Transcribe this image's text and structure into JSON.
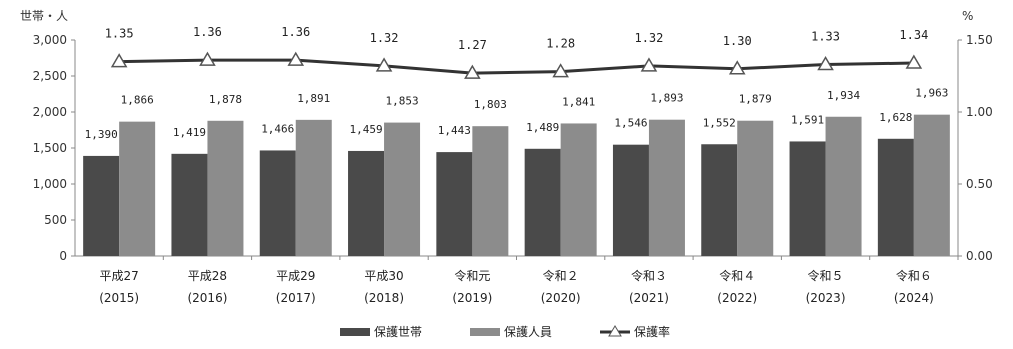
{
  "chart_data": {
    "type": "bar",
    "left_axis_unit": "世帯・人",
    "right_axis_unit": "%",
    "categories": [
      {
        "era": "平成27",
        "year": "(2015)"
      },
      {
        "era": "平成28",
        "year": "(2016)"
      },
      {
        "era": "平成29",
        "year": "(2017)"
      },
      {
        "era": "平成30",
        "year": "(2018)"
      },
      {
        "era": "令和元",
        "year": "(2019)"
      },
      {
        "era": "令和２",
        "year": "(2020)"
      },
      {
        "era": "令和３",
        "year": "(2021)"
      },
      {
        "era": "令和４",
        "year": "(2022)"
      },
      {
        "era": "令和５",
        "year": "(2023)"
      },
      {
        "era": "令和６",
        "year": "(2024)"
      }
    ],
    "left_axis": {
      "min": 0,
      "max": 3000,
      "ticks": [
        "0",
        "500",
        "1,000",
        "1,500",
        "2,000",
        "2,500",
        "3,000"
      ]
    },
    "right_axis": {
      "min": 0,
      "max": 1.5,
      "ticks": [
        "0.00",
        "0.50",
        "1.00",
        "1.50"
      ]
    },
    "series": [
      {
        "name": "保護世帯",
        "axis": "left",
        "kind": "bar",
        "color": "#4a4a4a",
        "values": [
          1390,
          1419,
          1466,
          1459,
          1443,
          1489,
          1546,
          1552,
          1591,
          1628
        ],
        "labels": [
          "1,390",
          "1,419",
          "1,466",
          "1,459",
          "1,443",
          "1,489",
          "1,546",
          "1,552",
          "1,591",
          "1,628"
        ]
      },
      {
        "name": "保護人員",
        "axis": "left",
        "kind": "bar",
        "color": "#8c8c8c",
        "values": [
          1866,
          1878,
          1891,
          1853,
          1803,
          1841,
          1893,
          1879,
          1934,
          1963
        ],
        "labels": [
          "1,866",
          "1,878",
          "1,891",
          "1,853",
          "1,803",
          "1,841",
          "1,893",
          "1,879",
          "1,934",
          "1,963"
        ]
      },
      {
        "name": "保護率",
        "axis": "right",
        "kind": "line",
        "color": "#333333",
        "values": [
          1.35,
          1.36,
          1.36,
          1.32,
          1.27,
          1.28,
          1.32,
          1.3,
          1.33,
          1.34
        ],
        "labels": [
          "1.35",
          "1.36",
          "1.36",
          "1.32",
          "1.27",
          "1.28",
          "1.32",
          "1.30",
          "1.33",
          "1.34"
        ]
      }
    ],
    "grid": false,
    "legend_position": "bottom-center"
  }
}
